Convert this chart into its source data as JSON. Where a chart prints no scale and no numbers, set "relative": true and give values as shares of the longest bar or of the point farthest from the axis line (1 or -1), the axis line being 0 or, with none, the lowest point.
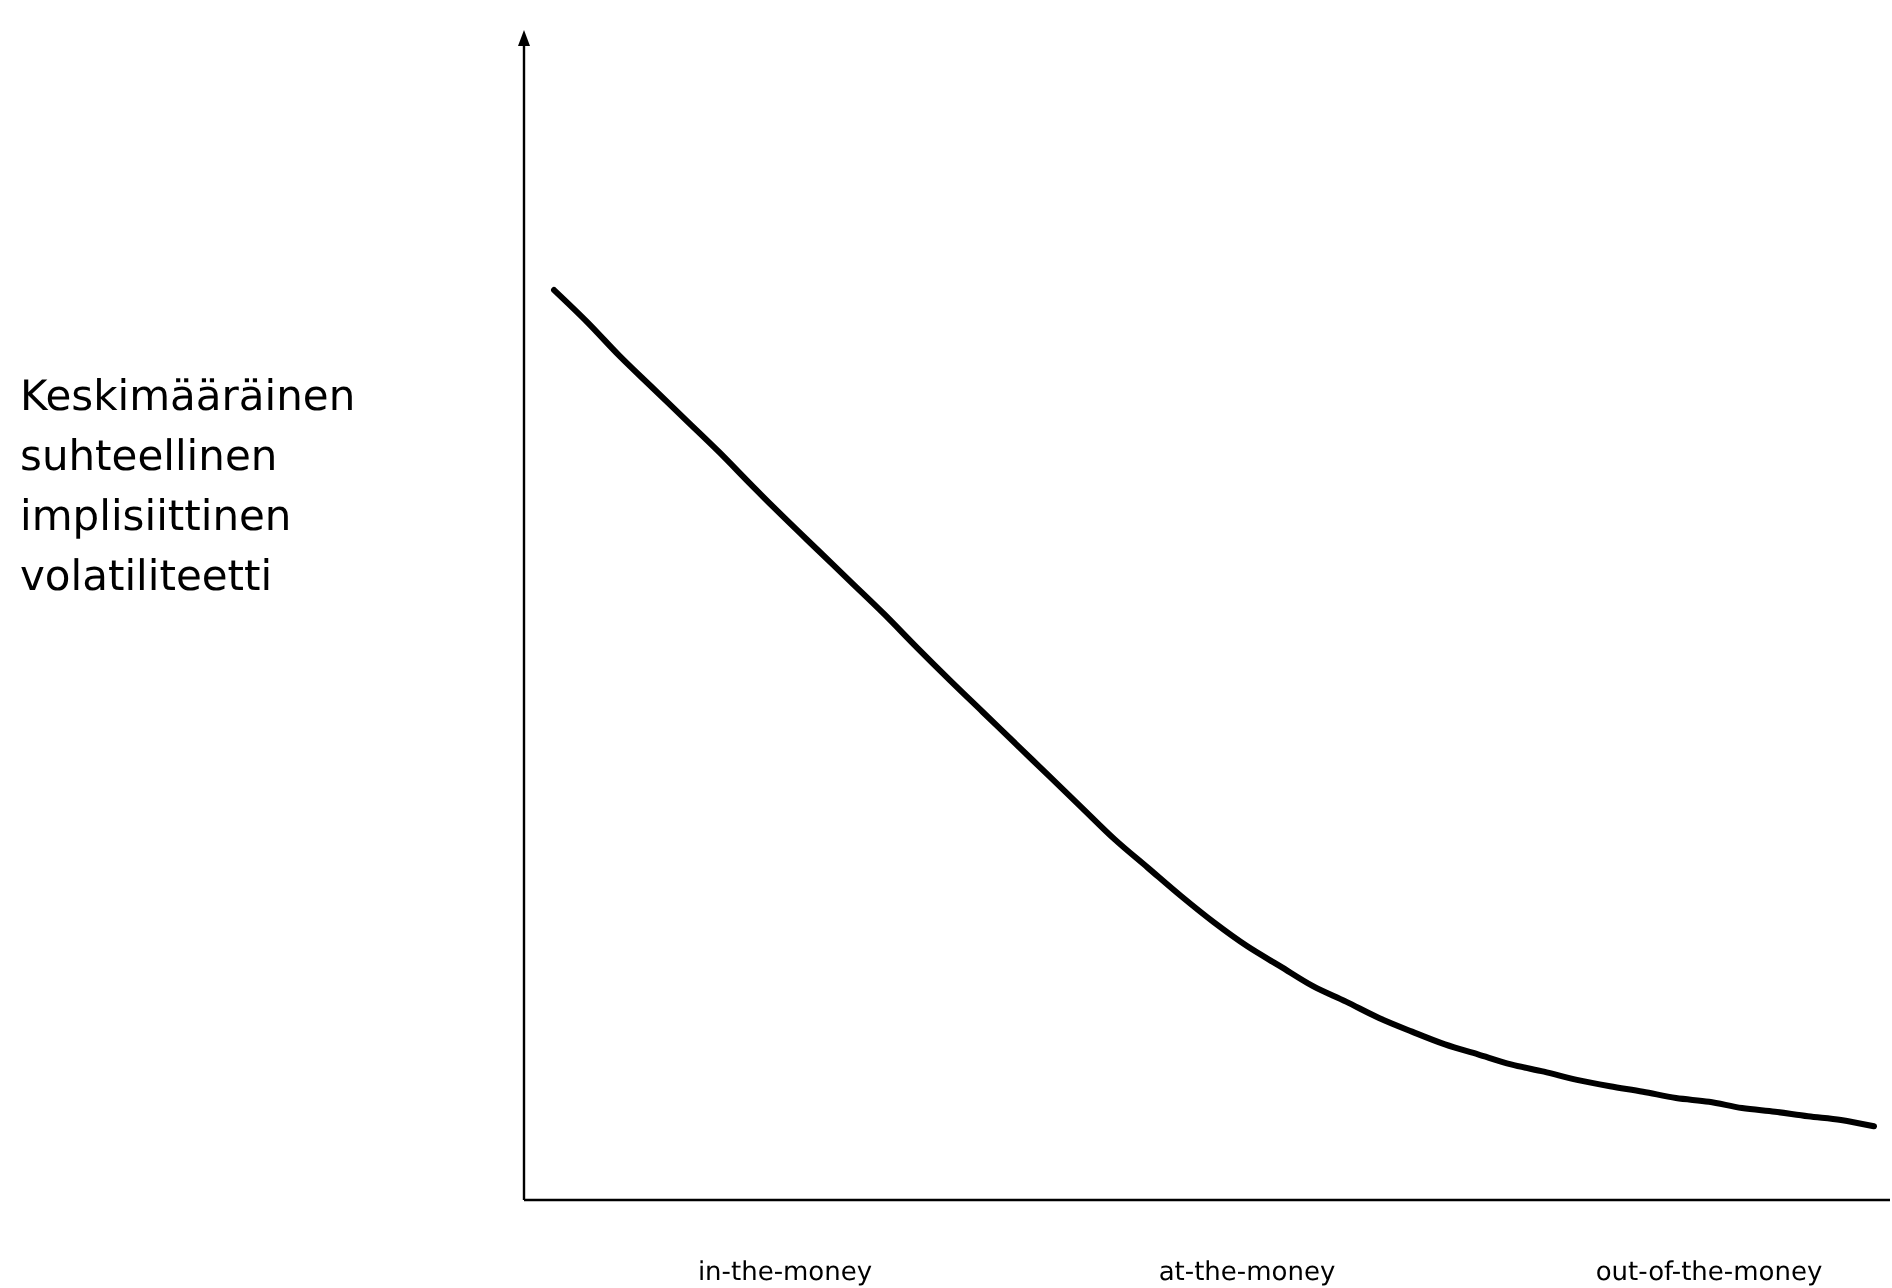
{
  "chart_data": {
    "type": "line",
    "relative": true,
    "ylabel": "Keskimääräinen suhteellinen implisiittinen volatiliteetti",
    "categories": [
      null,
      null,
      null,
      null,
      null,
      null,
      null,
      "in-the-money",
      null,
      null,
      null,
      null,
      null,
      null,
      null,
      null,
      null,
      null,
      null,
      null,
      null,
      "at-the-money",
      null,
      null,
      null,
      null,
      null,
      null,
      null,
      null,
      null,
      null,
      null,
      null,
      null,
      "out-of-the-money",
      null,
      null,
      null,
      null,
      null
    ],
    "series": [
      {
        "color": "#000000",
        "values": [
          1,
          0.965,
          0.927,
          0.892,
          0.857,
          0.822,
          0.785,
          0.749,
          0.714,
          0.679,
          0.644,
          0.607,
          0.571,
          0.536,
          0.501,
          0.466,
          0.431,
          0.396,
          0.365,
          0.334,
          0.305,
          0.279,
          0.257,
          0.235,
          0.218,
          0.2,
          0.185,
          0.171,
          0.16,
          0.149,
          0.141,
          0.132,
          0.125,
          0.119,
          0.112,
          0.108,
          0.101,
          0.097,
          0.092,
          0.088,
          0.081
        ]
      }
    ],
    "marker": "none",
    "line_style": "solid",
    "grid": false
  }
}
